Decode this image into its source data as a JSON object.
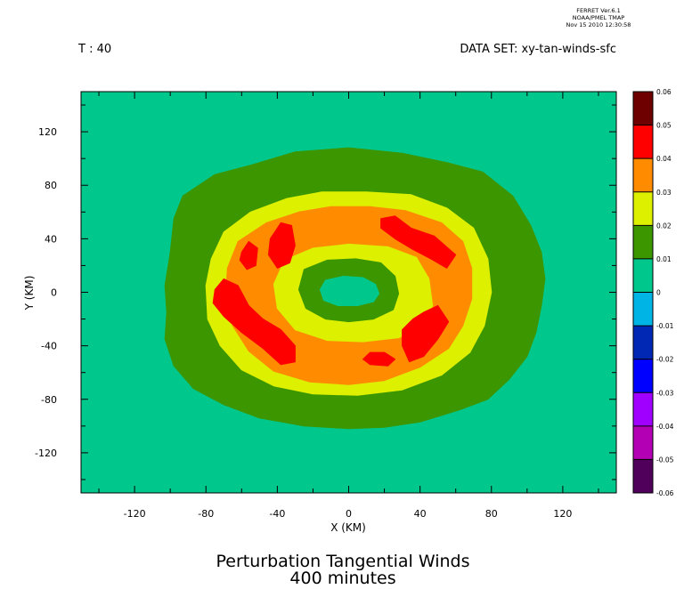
{
  "header": {
    "ferret_lines": [
      "FERRET  Ver.6.1",
      "NOAA/PMEL TMAP",
      "Nov 15 2010 12:30:58"
    ],
    "time_label": "T : 40",
    "dataset_label": "DATA SET: xy-tan-winds-sfc"
  },
  "chart_data": {
    "type": "heatmap",
    "title": "Perturbation Tangential Winds",
    "subtitle": "400 minutes",
    "xlabel": "X (KM)",
    "ylabel": "Y (KM)",
    "xlim": [
      -150,
      150
    ],
    "ylim": [
      -150,
      150
    ],
    "xticks": [
      -120,
      -80,
      -40,
      0,
      40,
      80,
      120
    ],
    "yticks": [
      120,
      80,
      40,
      0,
      -40,
      -80,
      -120
    ],
    "colorbar": {
      "levels": [
        0.06,
        0.05,
        0.04,
        0.03,
        0.02,
        0.01,
        0,
        -0.01,
        -0.02,
        -0.03,
        -0.04,
        -0.05,
        -0.06
      ],
      "labels": [
        "0.06",
        "0.05",
        "0.04",
        "0.03",
        "0.02",
        "0.01",
        "0",
        "-0.01",
        "-0.02",
        "-0.03",
        "-0.04",
        "-0.05",
        "-0.06"
      ],
      "colors": [
        "#6e0000",
        "#ff0000",
        "#ff8c00",
        "#dcf000",
        "#3c9600",
        "#00c88c",
        "#00b4e6",
        "#0028b4",
        "#0000ff",
        "#a000ff",
        "#b400b4",
        "#50005a"
      ]
    },
    "background_color": "#00c88c",
    "contours": [
      {
        "level": "0.01 to 0.02",
        "color": "#3c9600",
        "points": [
          [
            -93,
            72
          ],
          [
            -75,
            88
          ],
          [
            -55,
            95
          ],
          [
            -30,
            105
          ],
          [
            0,
            108
          ],
          [
            30,
            104
          ],
          [
            55,
            97
          ],
          [
            75,
            90
          ],
          [
            92,
            72
          ],
          [
            102,
            50
          ],
          [
            108,
            30
          ],
          [
            110,
            10
          ],
          [
            108,
            -10
          ],
          [
            105,
            -30
          ],
          [
            100,
            -48
          ],
          [
            90,
            -65
          ],
          [
            78,
            -80
          ],
          [
            62,
            -88
          ],
          [
            40,
            -97
          ],
          [
            20,
            -101
          ],
          [
            0,
            -102
          ],
          [
            -25,
            -100
          ],
          [
            -50,
            -94
          ],
          [
            -70,
            -84
          ],
          [
            -87,
            -72
          ],
          [
            -98,
            -55
          ],
          [
            -103,
            -35
          ],
          [
            -102,
            -15
          ],
          [
            -103,
            5
          ],
          [
            -100,
            30
          ],
          [
            -98,
            55
          ]
        ]
      },
      {
        "level": "0.02 to 0.03",
        "color": "#dcf000",
        "points": [
          [
            -70,
            45
          ],
          [
            -55,
            60
          ],
          [
            -35,
            70
          ],
          [
            -15,
            75
          ],
          [
            10,
            75
          ],
          [
            35,
            73
          ],
          [
            55,
            63
          ],
          [
            70,
            48
          ],
          [
            78,
            25
          ],
          [
            80,
            0
          ],
          [
            76,
            -25
          ],
          [
            68,
            -45
          ],
          [
            52,
            -62
          ],
          [
            30,
            -73
          ],
          [
            5,
            -77
          ],
          [
            -20,
            -76
          ],
          [
            -42,
            -70
          ],
          [
            -60,
            -58
          ],
          [
            -72,
            -40
          ],
          [
            -79,
            -20
          ],
          [
            -80,
            5
          ],
          [
            -77,
            25
          ]
        ]
      },
      {
        "level": "0.03 to 0.04",
        "color": "#ff8c00",
        "points": [
          [
            -62,
            38
          ],
          [
            -46,
            52
          ],
          [
            -28,
            60
          ],
          [
            -10,
            64
          ],
          [
            12,
            64
          ],
          [
            32,
            61
          ],
          [
            52,
            52
          ],
          [
            64,
            38
          ],
          [
            69,
            18
          ],
          [
            69,
            -5
          ],
          [
            64,
            -25
          ],
          [
            56,
            -42
          ],
          [
            40,
            -56
          ],
          [
            20,
            -66
          ],
          [
            0,
            -69
          ],
          [
            -22,
            -67
          ],
          [
            -42,
            -59
          ],
          [
            -56,
            -44
          ],
          [
            -65,
            -25
          ],
          [
            -69,
            -5
          ],
          [
            -68,
            18
          ]
        ]
      },
      {
        "level": "0.02 to 0.03",
        "color": "#dcf000",
        "points": [
          [
            -36,
            24
          ],
          [
            -20,
            33
          ],
          [
            0,
            36
          ],
          [
            22,
            34
          ],
          [
            38,
            26
          ],
          [
            45,
            10
          ],
          [
            47,
            -10
          ],
          [
            42,
            -26
          ],
          [
            28,
            -34
          ],
          [
            8,
            -37
          ],
          [
            -12,
            -36
          ],
          [
            -30,
            -28
          ],
          [
            -40,
            -12
          ],
          [
            -42,
            6
          ]
        ]
      },
      {
        "level": "0.01 to 0.02",
        "color": "#3c9600",
        "points": [
          [
            -25,
            17
          ],
          [
            -12,
            24
          ],
          [
            4,
            25
          ],
          [
            18,
            22
          ],
          [
            26,
            12
          ],
          [
            28,
            -1
          ],
          [
            25,
            -13
          ],
          [
            14,
            -20
          ],
          [
            0,
            -22
          ],
          [
            -13,
            -20
          ],
          [
            -24,
            -12
          ],
          [
            -28,
            2
          ]
        ]
      },
      {
        "level": "0 to 0.01",
        "color": "#00c88c",
        "points": [
          [
            -13,
            9
          ],
          [
            -3,
            12
          ],
          [
            8,
            11
          ],
          [
            15,
            6
          ],
          [
            17,
            -1
          ],
          [
            14,
            -7
          ],
          [
            5,
            -10
          ],
          [
            -6,
            -10
          ],
          [
            -14,
            -6
          ],
          [
            -16,
            2
          ]
        ]
      },
      {
        "level": "0.04 to 0.05",
        "color": "#ff0000",
        "points": [
          [
            -44,
            40
          ],
          [
            -38,
            52
          ],
          [
            -32,
            50
          ],
          [
            -30,
            35
          ],
          [
            -33,
            22
          ],
          [
            -40,
            18
          ],
          [
            -45,
            28
          ]
        ]
      },
      {
        "level": "0.04 to 0.05",
        "color": "#ff0000",
        "points": [
          [
            -60,
            30
          ],
          [
            -56,
            38
          ],
          [
            -51,
            33
          ],
          [
            -52,
            20
          ],
          [
            -57,
            17
          ],
          [
            -61,
            24
          ]
        ]
      },
      {
        "level": "0.04 to 0.05",
        "color": "#ff0000",
        "points": [
          [
            -75,
            2
          ],
          [
            -70,
            10
          ],
          [
            -62,
            5
          ],
          [
            -56,
            -10
          ],
          [
            -48,
            -20
          ],
          [
            -38,
            -28
          ],
          [
            -30,
            -40
          ],
          [
            -30,
            -52
          ],
          [
            -38,
            -54
          ],
          [
            -48,
            -42
          ],
          [
            -60,
            -30
          ],
          [
            -70,
            -18
          ],
          [
            -76,
            -8
          ]
        ]
      },
      {
        "level": "0.04 to 0.05",
        "color": "#ff0000",
        "points": [
          [
            18,
            55
          ],
          [
            26,
            57
          ],
          [
            35,
            48
          ],
          [
            48,
            42
          ],
          [
            60,
            28
          ],
          [
            55,
            18
          ],
          [
            46,
            25
          ],
          [
            36,
            32
          ],
          [
            26,
            40
          ],
          [
            18,
            48
          ]
        ]
      },
      {
        "level": "0.04 to 0.05",
        "color": "#ff0000",
        "points": [
          [
            30,
            -28
          ],
          [
            36,
            -20
          ],
          [
            42,
            -15
          ],
          [
            50,
            -10
          ],
          [
            56,
            -22
          ],
          [
            50,
            -35
          ],
          [
            42,
            -48
          ],
          [
            34,
            -52
          ],
          [
            30,
            -40
          ]
        ]
      },
      {
        "level": "0.04 to 0.05",
        "color": "#ff0000",
        "points": [
          [
            12,
            -45
          ],
          [
            20,
            -45
          ],
          [
            26,
            -50
          ],
          [
            22,
            -55
          ],
          [
            12,
            -54
          ],
          [
            8,
            -50
          ]
        ]
      }
    ]
  }
}
